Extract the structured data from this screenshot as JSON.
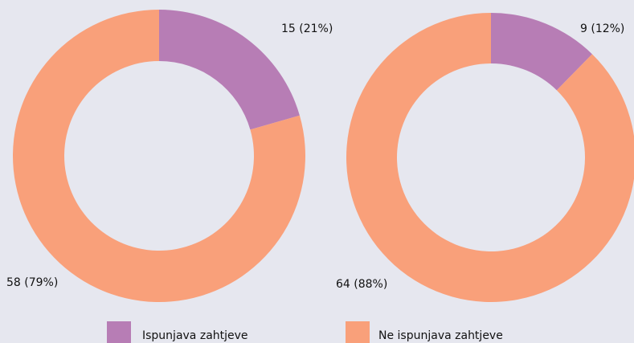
{
  "chart_data": [
    {
      "type": "pie",
      "categories": [
        "Ispunjava zahtjeve",
        "Ne ispunjava zahtjeve"
      ],
      "values": [
        15,
        58
      ],
      "value_labels": [
        "15 (21%)",
        "58 (79%)"
      ],
      "colors": [
        "#b77db5",
        "#f9a07a"
      ]
    },
    {
      "type": "pie",
      "categories": [
        "Ispunjava zahtjeve",
        "Ne ispunjava zahtjeve"
      ],
      "values": [
        9,
        64
      ],
      "value_labels": [
        "9 (12%)",
        "64 (88%)"
      ],
      "colors": [
        "#b77db5",
        "#f9a07a"
      ]
    }
  ]
}
